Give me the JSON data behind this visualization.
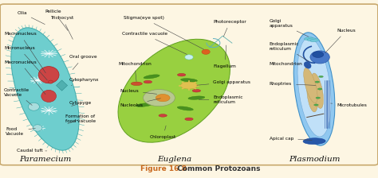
{
  "title": "Figure 16.8",
  "title_bold": "Figure 16.8",
  "title_normal": "  Common Protozoans",
  "bg_color": "#fdf6e3",
  "border_color": "#c8a96e",
  "fig_width": 4.74,
  "fig_height": 2.24,
  "dpi": 100,
  "annotation_fontsize": 4.2,
  "label_fontsize": 7.5,
  "title_fontsize": 6.5,
  "title_color": "#c8681e",
  "paramecium_color": "#6ecece",
  "paramecium_edge": "#40aaaa",
  "euglena_color": "#90cc40",
  "euglena_edge": "#50a010",
  "plasmodium_outer_color": "#90c8f0",
  "plasmodium_outer_edge": "#4090c8",
  "plasmodium_inner_color": "#c8e8f8",
  "plasmodium_tan_color": "#d4b878",
  "red_organelle": "#cc4444",
  "green_organelle": "#4a9a30",
  "nucleus_color": "#a0c870",
  "nucleolus_color": "#e08830"
}
